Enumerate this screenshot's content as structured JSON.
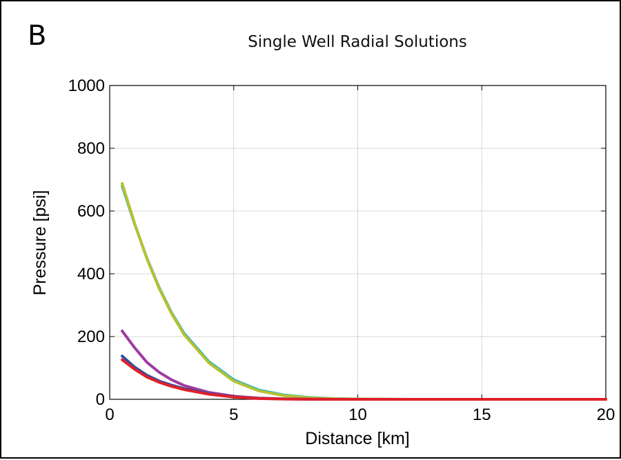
{
  "panel_label": "B",
  "chart_data": {
    "type": "line",
    "title": "Single Well Radial Solutions",
    "xlabel": "Distance [km]",
    "ylabel": "Pressure [psi]",
    "xlim": [
      0,
      20
    ],
    "ylim": [
      0,
      1000
    ],
    "xticks": [
      0,
      5,
      10,
      15,
      20
    ],
    "yticks": [
      0,
      200,
      400,
      600,
      800,
      1000
    ],
    "xtick_labels": [
      "0",
      "5",
      "10",
      "15",
      "20"
    ],
    "ytick_labels": [
      "0",
      "200",
      "400",
      "600",
      "800",
      "1000"
    ],
    "grid": true,
    "legend": "none",
    "series": [
      {
        "color": "#25b8c8",
        "x": [
          0.5,
          1,
          1.5,
          2,
          2.5,
          3,
          4,
          5,
          6,
          7,
          8,
          9,
          10,
          12,
          15,
          20
        ],
        "y": [
          680,
          560,
          450,
          355,
          275,
          210,
          120,
          62,
          30,
          14,
          6,
          2.5,
          1,
          0,
          0,
          0
        ]
      },
      {
        "color": "#b8c030",
        "x": [
          0.5,
          1,
          1.5,
          2,
          2.5,
          3,
          4,
          5,
          6,
          7,
          8,
          9,
          10,
          12,
          15,
          20
        ],
        "y": [
          688,
          562,
          448,
          352,
          272,
          206,
          116,
          58,
          27,
          12,
          5,
          2,
          0.8,
          0,
          0,
          0
        ]
      },
      {
        "color": "#a03aa0",
        "x": [
          0.5,
          1,
          1.5,
          2,
          2.5,
          3,
          4,
          5,
          6,
          7,
          8,
          9,
          10,
          12,
          15,
          20
        ],
        "y": [
          218,
          165,
          118,
          86,
          62,
          44,
          22,
          10,
          4,
          1.5,
          0.5,
          0,
          0,
          0,
          0,
          0
        ]
      },
      {
        "color": "#3a4a9a",
        "x": [
          0.5,
          1,
          1.5,
          2,
          2.5,
          3,
          4,
          5,
          6,
          7,
          8,
          9,
          10,
          12,
          15,
          20
        ],
        "y": [
          138,
          103,
          77,
          58,
          45,
          34,
          18,
          8,
          3,
          1,
          0.3,
          0,
          0,
          0,
          0,
          0
        ]
      },
      {
        "color": "#e0202a",
        "x": [
          0.5,
          1,
          1.5,
          2,
          2.5,
          3,
          4,
          5,
          6,
          7,
          8,
          9,
          10,
          12,
          15,
          20
        ],
        "y": [
          126,
          96,
          71,
          54,
          41,
          31,
          16,
          7,
          2.5,
          0.8,
          0.2,
          0,
          0,
          0,
          0,
          0
        ]
      }
    ]
  }
}
